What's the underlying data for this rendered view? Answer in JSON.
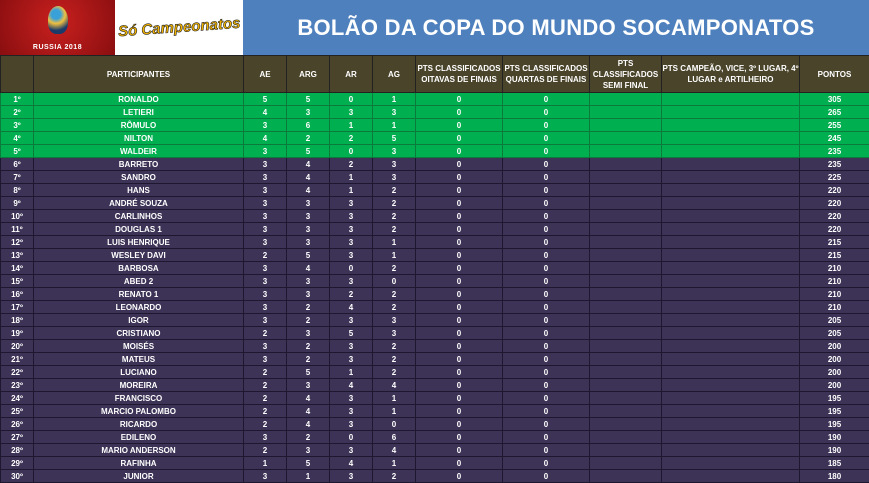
{
  "banner": {
    "logo_text": "RUSSIA 2018",
    "brand": "Só Campeonatos",
    "title": "BOLÃO DA COPA DO MUNDO SOCAMPONATOS"
  },
  "colors": {
    "title_bg": "#4e80bd",
    "header_bg": "#4a442b",
    "top5_bg": "#00af4f",
    "rest_bg": "#3d3356"
  },
  "columns": [
    "",
    "PARTICIPANTES",
    "AE",
    "ARG",
    "AR",
    "AG",
    "PTS CLASSIFICADOS OITAVAS DE FINAIS",
    "PTS CLASSIFICADOS QUARTAS DE FINAIS",
    "PTS CLASSIFICADOS SEMI FINAL",
    "PTS CAMPEÃO, VICE, 3º LUGAR, 4º LUGAR e ARTILHEIRO",
    "PONTOS"
  ],
  "rows": [
    [
      "1º",
      "RONALDO",
      "5",
      "5",
      "0",
      "1",
      "0",
      "0",
      "",
      "",
      "305"
    ],
    [
      "2º",
      "LETIERI",
      "4",
      "3",
      "3",
      "3",
      "0",
      "0",
      "",
      "",
      "265"
    ],
    [
      "3º",
      "RÔMULO",
      "3",
      "6",
      "1",
      "1",
      "0",
      "0",
      "",
      "",
      "255"
    ],
    [
      "4º",
      "NILTON",
      "4",
      "2",
      "2",
      "5",
      "0",
      "0",
      "",
      "",
      "245"
    ],
    [
      "5º",
      "WALDEIR",
      "3",
      "5",
      "0",
      "3",
      "0",
      "0",
      "",
      "",
      "235"
    ],
    [
      "6º",
      "BARRETO",
      "3",
      "4",
      "2",
      "3",
      "0",
      "0",
      "",
      "",
      "235"
    ],
    [
      "7º",
      "SANDRO",
      "3",
      "4",
      "1",
      "3",
      "0",
      "0",
      "",
      "",
      "225"
    ],
    [
      "8º",
      "HANS",
      "3",
      "4",
      "1",
      "2",
      "0",
      "0",
      "",
      "",
      "220"
    ],
    [
      "9º",
      "ANDRÉ SOUZA",
      "3",
      "3",
      "3",
      "2",
      "0",
      "0",
      "",
      "",
      "220"
    ],
    [
      "10º",
      "CARLINHOS",
      "3",
      "3",
      "3",
      "2",
      "0",
      "0",
      "",
      "",
      "220"
    ],
    [
      "11º",
      "DOUGLAS 1",
      "3",
      "3",
      "3",
      "2",
      "0",
      "0",
      "",
      "",
      "220"
    ],
    [
      "12º",
      "LUIS HENRIQUE",
      "3",
      "3",
      "3",
      "1",
      "0",
      "0",
      "",
      "",
      "215"
    ],
    [
      "13º",
      "WESLEY DAVI",
      "2",
      "5",
      "3",
      "1",
      "0",
      "0",
      "",
      "",
      "215"
    ],
    [
      "14º",
      "BARBOSA",
      "3",
      "4",
      "0",
      "2",
      "0",
      "0",
      "",
      "",
      "210"
    ],
    [
      "15º",
      "ABED 2",
      "3",
      "3",
      "3",
      "0",
      "0",
      "0",
      "",
      "",
      "210"
    ],
    [
      "16º",
      "RENATO 1",
      "3",
      "3",
      "2",
      "2",
      "0",
      "0",
      "",
      "",
      "210"
    ],
    [
      "17º",
      "LEONARDO",
      "3",
      "2",
      "4",
      "2",
      "0",
      "0",
      "",
      "",
      "210"
    ],
    [
      "18º",
      "IGOR",
      "3",
      "2",
      "3",
      "3",
      "0",
      "0",
      "",
      "",
      "205"
    ],
    [
      "19º",
      "CRISTIANO",
      "2",
      "3",
      "5",
      "3",
      "0",
      "0",
      "",
      "",
      "205"
    ],
    [
      "20º",
      "MOISÉS",
      "3",
      "2",
      "3",
      "2",
      "0",
      "0",
      "",
      "",
      "200"
    ],
    [
      "21º",
      "MATEUS",
      "3",
      "2",
      "3",
      "2",
      "0",
      "0",
      "",
      "",
      "200"
    ],
    [
      "22º",
      "LUCIANO",
      "2",
      "5",
      "1",
      "2",
      "0",
      "0",
      "",
      "",
      "200"
    ],
    [
      "23º",
      "MOREIRA",
      "2",
      "3",
      "4",
      "4",
      "0",
      "0",
      "",
      "",
      "200"
    ],
    [
      "24º",
      "FRANCISCO",
      "2",
      "4",
      "3",
      "1",
      "0",
      "0",
      "",
      "",
      "195"
    ],
    [
      "25º",
      "MARCIO PALOMBO",
      "2",
      "4",
      "3",
      "1",
      "0",
      "0",
      "",
      "",
      "195"
    ],
    [
      "26º",
      "RICARDO",
      "2",
      "4",
      "3",
      "0",
      "0",
      "0",
      "",
      "",
      "195"
    ],
    [
      "27º",
      "EDILENO",
      "3",
      "2",
      "0",
      "6",
      "0",
      "0",
      "",
      "",
      "190"
    ],
    [
      "28º",
      "MARIO ANDERSON",
      "2",
      "3",
      "3",
      "4",
      "0",
      "0",
      "",
      "",
      "190"
    ],
    [
      "29º",
      "RAFINHA",
      "1",
      "5",
      "4",
      "1",
      "0",
      "0",
      "",
      "",
      "185"
    ],
    [
      "30º",
      "JUNIOR",
      "3",
      "1",
      "3",
      "2",
      "0",
      "0",
      "",
      "",
      "180"
    ]
  ]
}
